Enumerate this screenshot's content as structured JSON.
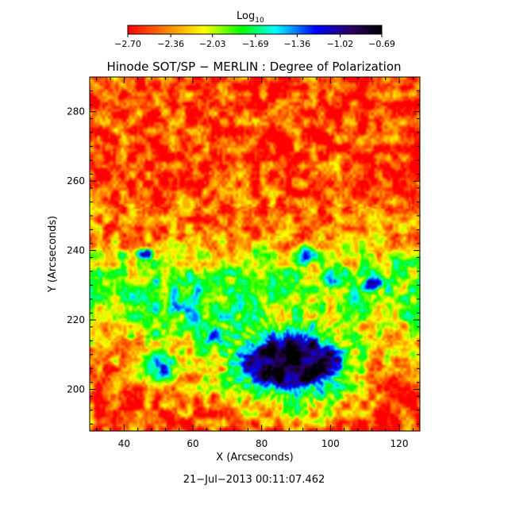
{
  "chart_data": {
    "type": "heatmap",
    "title": "Hinode SOT/SP − MERLIN : Degree of Polarization",
    "xlabel": "X (Arcseconds)",
    "ylabel": "Y (Arcseconds)",
    "xlim": [
      30,
      126
    ],
    "ylim": [
      188,
      290
    ],
    "x_ticks": [
      "40",
      "60",
      "80",
      "100",
      "120"
    ],
    "x_tick_values": [
      40,
      60,
      80,
      100,
      120
    ],
    "y_ticks": [
      "200",
      "220",
      "240",
      "260",
      "280"
    ],
    "y_tick_values": [
      200,
      220,
      240,
      260,
      280
    ],
    "colorbar": {
      "label_main": "Log",
      "label_sub": "10",
      "ticks": [
        "−2.70",
        "−2.36",
        "−2.03",
        "−1.69",
        "−1.36",
        "−1.02",
        "−0.69"
      ],
      "tick_values": [
        -2.7,
        -2.36,
        -2.03,
        -1.69,
        -1.36,
        -1.02,
        -0.69
      ],
      "range": [
        -2.7,
        -0.69
      ],
      "colors": [
        "#ff0000",
        "#ff8000",
        "#ffff00",
        "#00ff00",
        "#00ffff",
        "#0000ff",
        "#2a0060",
        "#000000"
      ]
    },
    "features": [
      {
        "x": 88,
        "y": 208,
        "level": -0.85,
        "sx": 11,
        "sy": 6,
        "type": "umbra"
      },
      {
        "x": 88,
        "y": 208,
        "level": -1.2,
        "sx": 17,
        "sy": 11,
        "type": "penumbra"
      },
      {
        "x": 112,
        "y": 230,
        "level": -0.95,
        "sx": 3,
        "sy": 2.4,
        "type": "pore"
      },
      {
        "x": 46,
        "y": 239,
        "level": -1.1,
        "sx": 2.5,
        "sy": 1.6,
        "type": "pore"
      },
      {
        "x": 66,
        "y": 216,
        "level": -1.3,
        "sx": 3,
        "sy": 4,
        "type": "plage"
      },
      {
        "x": 50,
        "y": 207,
        "level": -1.3,
        "sx": 5,
        "sy": 4,
        "type": "plage"
      },
      {
        "x": 92,
        "y": 238,
        "level": -1.4,
        "sx": 4,
        "sy": 3,
        "type": "plage"
      },
      {
        "x": 102,
        "y": 232,
        "level": -1.45,
        "sx": 6,
        "sy": 4,
        "type": "plage"
      }
    ],
    "background_level": -2.6
  },
  "timestamp": "21−Jul−2013 00:11:07.462"
}
